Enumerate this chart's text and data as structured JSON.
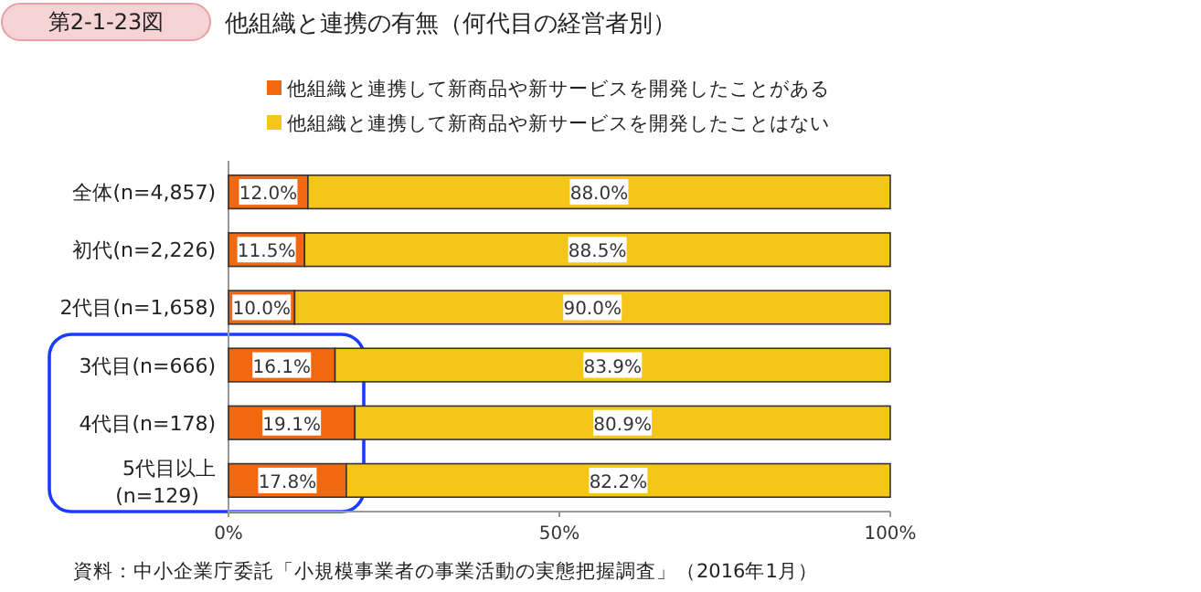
{
  "chart_data": {
    "type": "bar",
    "orientation": "horizontal",
    "stacked": true,
    "title": "他組織と連携の有無（何代目の経営者別）",
    "annotations": [
      "第2-1-23図",
      "資料：中小企業庁委託「小規模事業者の事業活動の実態把握調査」（2016年1月）"
    ],
    "categories": [
      "全体(n=4,857)",
      "初代(n=2,226)",
      "2代目(n=1,658)",
      "3代目(n=666)",
      "4代目(n=178)",
      "5代目以上\n(n=129)"
    ],
    "series": [
      {
        "name": "他組織と連携して新商品や新サービスを開発したことがある",
        "color": "#f26810",
        "values": [
          12.0,
          11.5,
          10.0,
          16.1,
          19.1,
          17.8
        ],
        "value_labels": [
          "12.0%",
          "11.5%",
          "10.0%",
          "16.1%",
          "19.1%",
          "17.8%"
        ]
      },
      {
        "name": "他組織と連携して新商品や新サービスを開発したことはない",
        "color": "#f5c518",
        "values": [
          88.0,
          88.5,
          90.0,
          83.9,
          80.9,
          82.2
        ],
        "value_labels": [
          "88.0%",
          "88.5%",
          "90.0%",
          "83.9%",
          "80.9%",
          "82.2%"
        ]
      }
    ],
    "xlim": [
      0,
      100
    ],
    "xticks": [
      {
        "value": 0,
        "label": "0%"
      },
      {
        "value": 50,
        "label": "50%"
      },
      {
        "value": 100,
        "label": "100%"
      }
    ],
    "legend": "top"
  }
}
